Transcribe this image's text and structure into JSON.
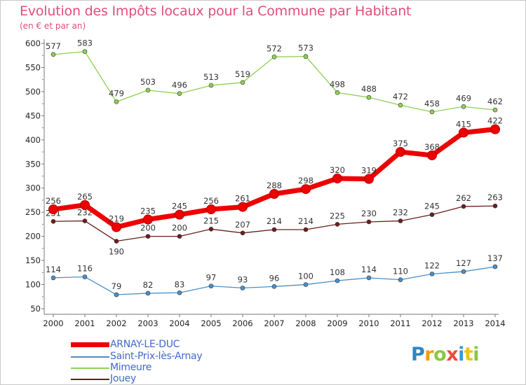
{
  "title": "Evolution des Impôts locaux pour la Commune par Habitant",
  "subtitle": "(en € et par an)",
  "brand": {
    "text": "Proxiti",
    "colors": [
      "#2e86c1",
      "#f39c12",
      "#8dc63f",
      "#e74c3c",
      "#3498db",
      "#f1c40f",
      "#8dc63f"
    ]
  },
  "chart_data": {
    "type": "line",
    "title": "Evolution des Impôts locaux pour la Commune par Habitant",
    "subtitle": "(en € et par an)",
    "x": [
      "2000",
      "2001",
      "2002",
      "2003",
      "2004",
      "2005",
      "2006",
      "2007",
      "2008",
      "2009",
      "2010",
      "2011",
      "2012",
      "2013",
      "2014"
    ],
    "ylim": [
      50,
      600
    ],
    "yticks": [
      50,
      100,
      150,
      200,
      250,
      300,
      350,
      400,
      450,
      500,
      550,
      600
    ],
    "grid": false,
    "legend_position": "bottom-left",
    "series": [
      {
        "name": "ARNAY-LE-DUC",
        "color": "#ee0000",
        "values": [
          256,
          265,
          219,
          235,
          245,
          256,
          261,
          288,
          298,
          320,
          319,
          375,
          368,
          415,
          422
        ]
      },
      {
        "name": "Saint-Prix-lès-Arnay",
        "color": "#4a90c8",
        "values": [
          114,
          116,
          79,
          82,
          83,
          97,
          93,
          96,
          100,
          108,
          114,
          110,
          122,
          127,
          137
        ]
      },
      {
        "name": "Mimeure",
        "color": "#8fd055",
        "values": [
          577,
          583,
          479,
          503,
          496,
          513,
          519,
          572,
          573,
          498,
          488,
          472,
          458,
          469,
          462
        ]
      },
      {
        "name": "Jouey",
        "color": "#6b1e1e",
        "values": [
          231,
          232,
          190,
          200,
          200,
          215,
          207,
          214,
          214,
          225,
          230,
          232,
          245,
          262,
          263
        ]
      }
    ]
  }
}
